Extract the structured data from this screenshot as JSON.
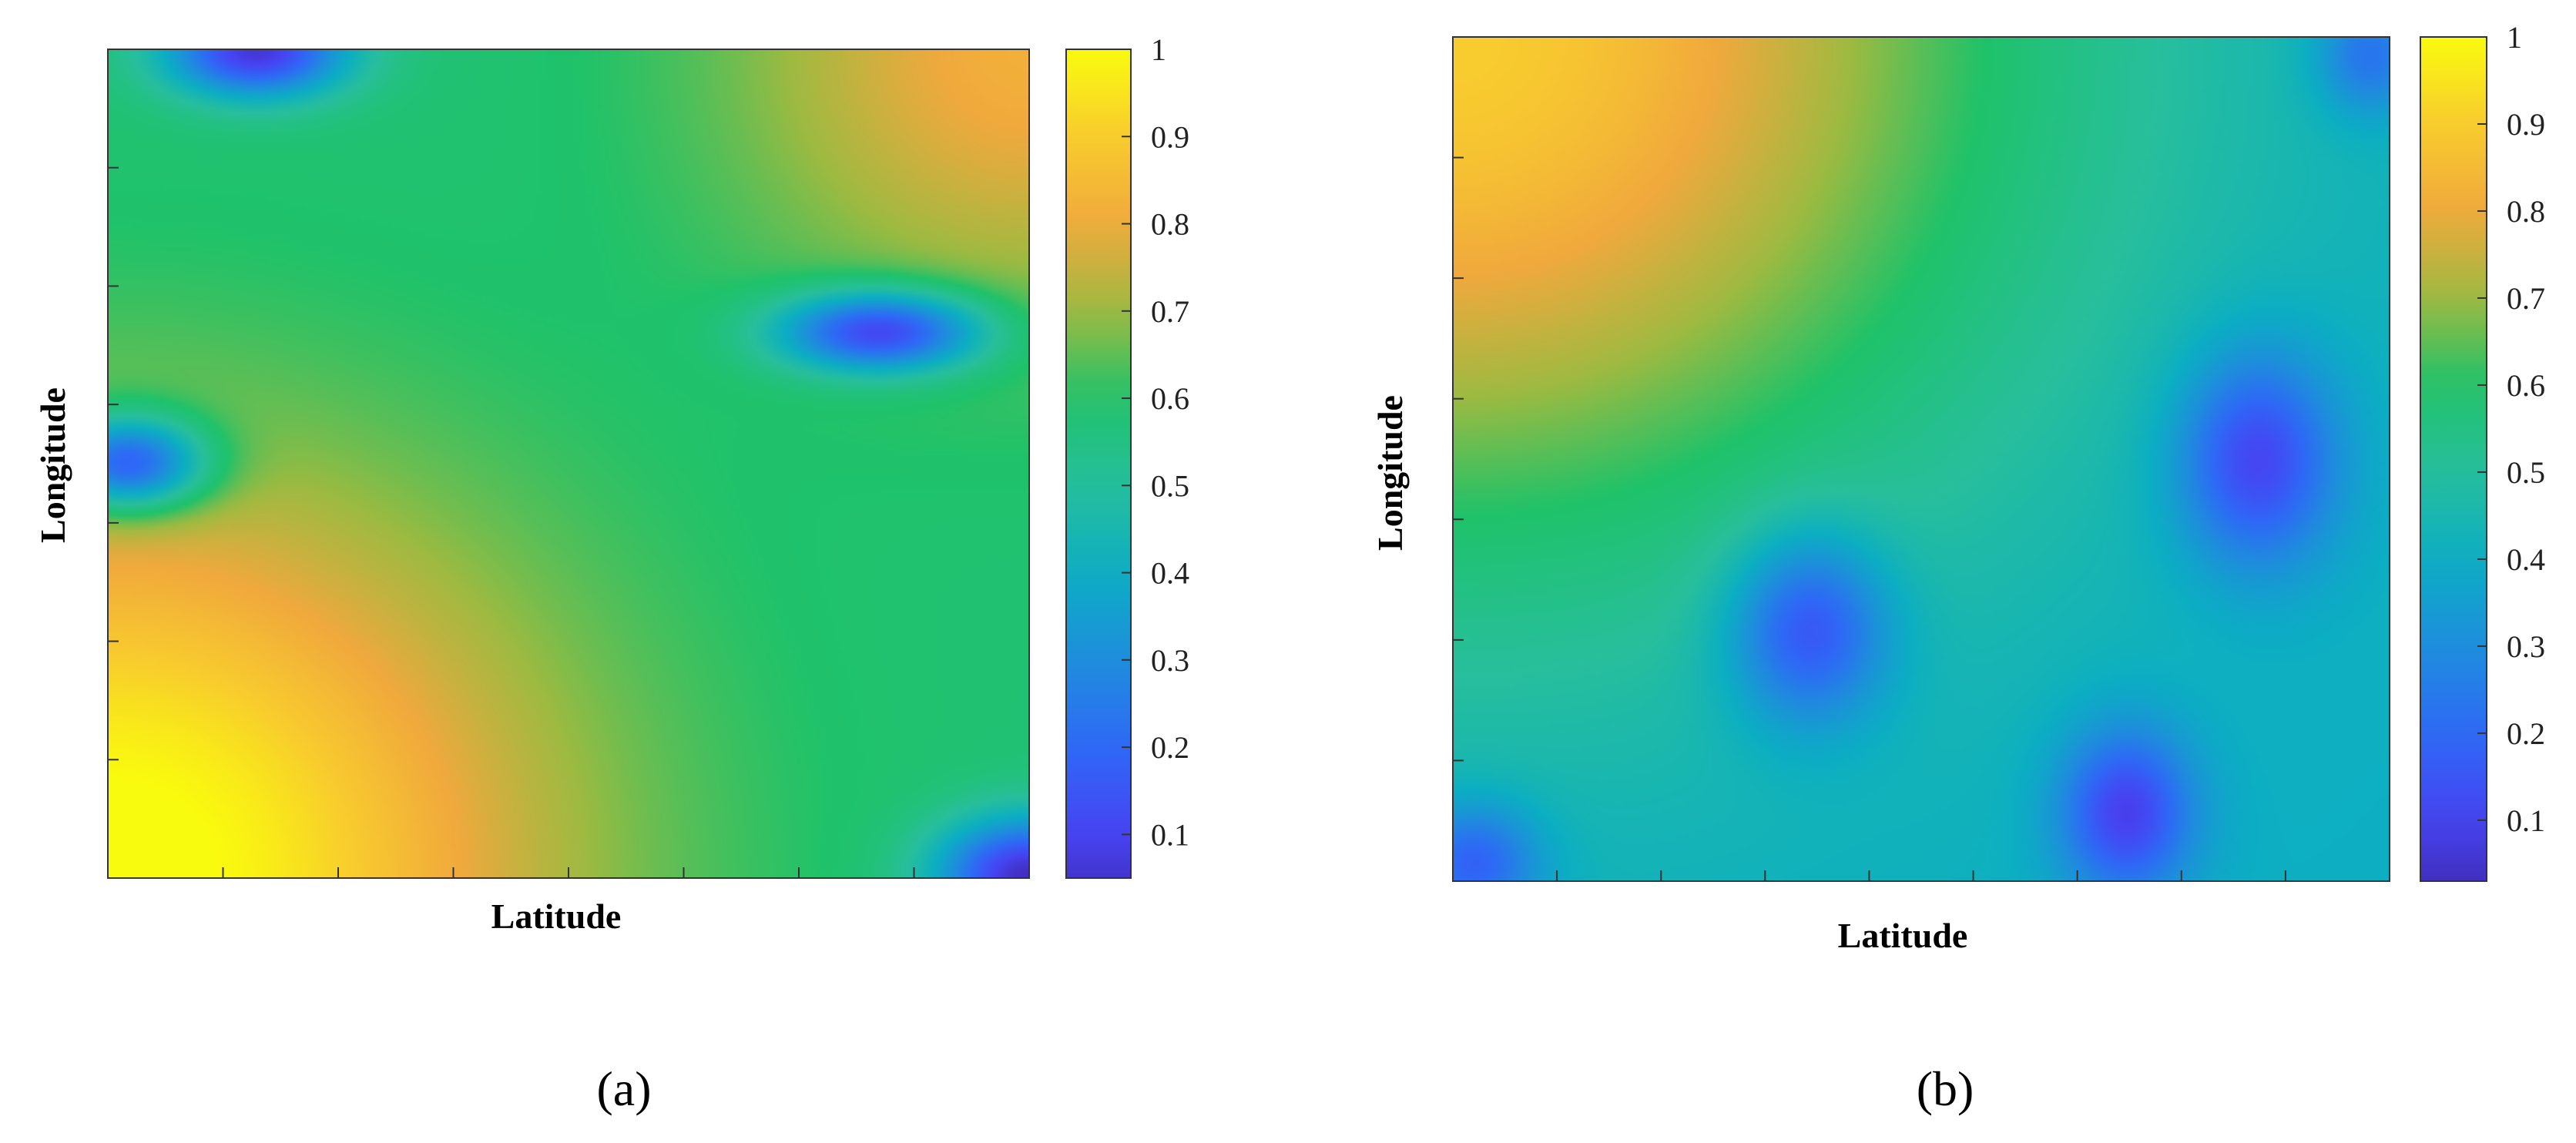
{
  "colormap": {
    "name": "parula",
    "stops": [
      {
        "v": 0.0,
        "color": "#3e26a8"
      },
      {
        "v": 0.1,
        "color": "#4743f2"
      },
      {
        "v": 0.2,
        "color": "#2e69f6"
      },
      {
        "v": 0.3,
        "color": "#1e8edc"
      },
      {
        "v": 0.4,
        "color": "#0caec3"
      },
      {
        "v": 0.5,
        "color": "#27bf9c"
      },
      {
        "v": 0.6,
        "color": "#1fc26a"
      },
      {
        "v": 0.7,
        "color": "#9eba41"
      },
      {
        "v": 0.8,
        "color": "#f0a93d"
      },
      {
        "v": 0.9,
        "color": "#f8cc2e"
      },
      {
        "v": 1.0,
        "color": "#f9fb0e"
      }
    ]
  },
  "chart_data": [
    {
      "type": "heatmap",
      "panel_label": "(a)",
      "xlabel": "Latitude",
      "ylabel": "Longitude",
      "x_range": [
        0,
        1
      ],
      "y_range": [
        0,
        1
      ],
      "colorbar": {
        "range": [
          0.05,
          1
        ],
        "ticks": [
          "0.1",
          "0.2",
          "0.3",
          "0.4",
          "0.5",
          "0.6",
          "0.7",
          "0.8",
          "0.9",
          "1"
        ]
      },
      "x_tick_count": 9,
      "y_tick_count": 8,
      "field": {
        "base": 0.58,
        "gradients": [
          {
            "cx": 0.0,
            "cy": 0.0,
            "amp": 0.45,
            "sigma": 0.32
          },
          {
            "cx": 1.0,
            "cy": 1.0,
            "amp": 0.24,
            "sigma": 0.22
          }
        ],
        "wells": [
          {
            "cx": 0.16,
            "cy": 1.0,
            "depth": 0.52,
            "sx": 0.07,
            "sy": 0.04
          },
          {
            "cx": 0.84,
            "cy": 0.66,
            "depth": 0.52,
            "sx": 0.08,
            "sy": 0.035
          },
          {
            "cx": 0.02,
            "cy": 0.5,
            "depth": 0.52,
            "sx": 0.06,
            "sy": 0.04
          },
          {
            "cx": 1.0,
            "cy": 0.0,
            "depth": 0.55,
            "sx": 0.07,
            "sy": 0.05
          }
        ]
      }
    },
    {
      "type": "heatmap",
      "panel_label": "(b)",
      "xlabel": "Latitude",
      "ylabel": "Longitude",
      "x_range": [
        0,
        1
      ],
      "y_range": [
        0,
        1
      ],
      "colorbar": {
        "range": [
          0.03,
          1
        ],
        "ticks": [
          "0.1",
          "0.2",
          "0.3",
          "0.4",
          "0.5",
          "0.6",
          "0.7",
          "0.8",
          "0.9",
          "1"
        ]
      },
      "x_tick_count": 10,
      "y_tick_count": 8,
      "field": {
        "base": 0.4,
        "gradients": [
          {
            "cx": 0.0,
            "cy": 1.0,
            "amp": 0.5,
            "sigma": 0.42
          }
        ],
        "wells": [
          {
            "cx": 0.38,
            "cy": 0.3,
            "depth": 0.32,
            "sx": 0.06,
            "sy": 0.08
          },
          {
            "cx": 0.72,
            "cy": 0.08,
            "depth": 0.32,
            "sx": 0.05,
            "sy": 0.07
          },
          {
            "cx": 0.86,
            "cy": 0.5,
            "depth": 0.32,
            "sx": 0.06,
            "sy": 0.09
          },
          {
            "cx": 0.02,
            "cy": 0.02,
            "depth": 0.25,
            "sx": 0.05,
            "sy": 0.05
          },
          {
            "cx": 0.98,
            "cy": 0.98,
            "depth": 0.2,
            "sx": 0.04,
            "sy": 0.05
          }
        ]
      }
    }
  ]
}
